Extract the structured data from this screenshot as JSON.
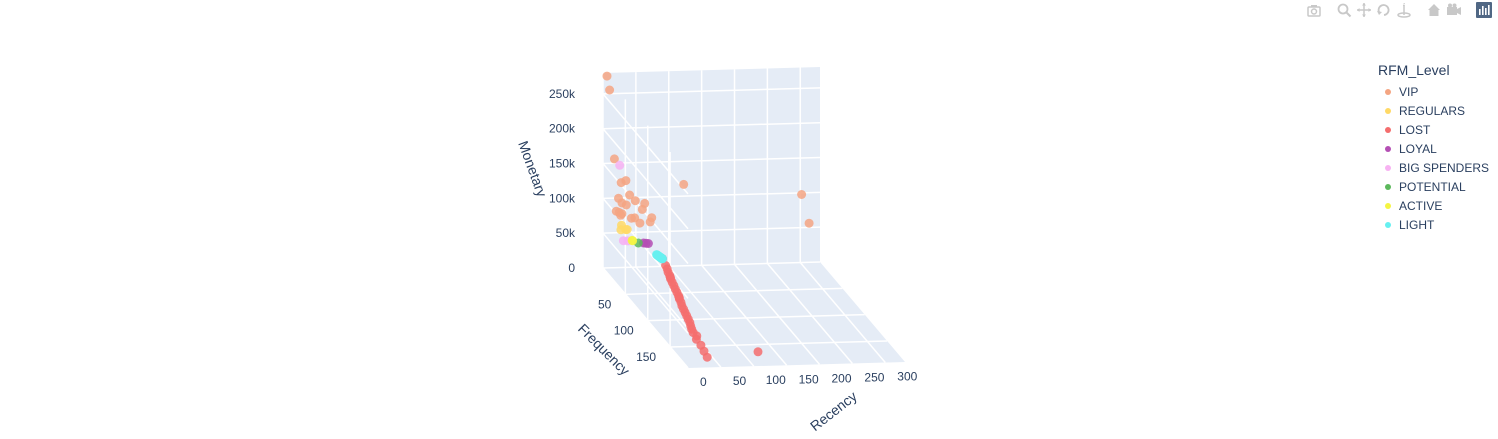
{
  "toolbar": {
    "buttons": [
      {
        "name": "camera-icon",
        "group": 0
      },
      {
        "name": "zoom-icon",
        "group": 1
      },
      {
        "name": "pan-icon",
        "group": 1
      },
      {
        "name": "orbit-icon",
        "group": 1
      },
      {
        "name": "turntable-icon",
        "group": 1
      },
      {
        "name": "home-icon",
        "group": 2
      },
      {
        "name": "camera-view-icon",
        "group": 2
      },
      {
        "name": "plotly-logo-icon",
        "group": 3
      }
    ]
  },
  "legend": {
    "title": "RFM_Level",
    "items": [
      {
        "label": "VIP",
        "color": "#f4a582"
      },
      {
        "label": "REGULARS",
        "color": "#ffd966"
      },
      {
        "label": "LOST",
        "color": "#f46d6d"
      },
      {
        "label": "LOYAL",
        "color": "#b44fb4"
      },
      {
        "label": "BIG SPENDERS",
        "color": "#f7b2f2"
      },
      {
        "label": "POTENTIAL",
        "color": "#5cb85c"
      },
      {
        "label": "ACTIVE",
        "color": "#f5f542"
      },
      {
        "label": "LIGHT",
        "color": "#66f0f0"
      }
    ]
  },
  "chart_data": {
    "type": "scatter",
    "dimensions": "3d",
    "axes": {
      "x": {
        "label": "Recency",
        "ticks": [
          "0",
          "50",
          "100",
          "150",
          "200",
          "250",
          "300"
        ],
        "range": [
          0,
          330
        ]
      },
      "y": {
        "label": "Frequency",
        "ticks": [
          "50",
          "100",
          "150"
        ],
        "range": [
          0,
          190
        ]
      },
      "z": {
        "label": "Monetary",
        "ticks": [
          "0",
          "50k",
          "100k",
          "150k",
          "200k",
          "250k"
        ],
        "range": [
          0,
          280000
        ]
      }
    },
    "grid": true,
    "legend_placement": "top-right",
    "series": [
      {
        "name": "VIP",
        "color": "#f4a582",
        "points": [
          [
            2,
            6,
            280000
          ],
          [
            6,
            6,
            260000
          ],
          [
            14,
            5,
            160000
          ],
          [
            25,
            4,
            125000
          ],
          [
            30,
            7,
            130000
          ],
          [
            10,
            20,
            115000
          ],
          [
            35,
            8,
            110000
          ],
          [
            45,
            6,
            100000
          ],
          [
            60,
            5,
            95000
          ],
          [
            120,
            4,
            120000
          ],
          [
            300,
            3,
            100000
          ],
          [
            310,
            5,
            60000
          ],
          [
            15,
            14,
            90000
          ],
          [
            22,
            10,
            85000
          ],
          [
            8,
            18,
            95000
          ],
          [
            40,
            12,
            80000
          ],
          [
            70,
            6,
            75000
          ],
          [
            50,
            9,
            70000
          ],
          [
            18,
            16,
            105000
          ],
          [
            28,
            11,
            98000
          ],
          [
            55,
            7,
            88000
          ],
          [
            12,
            22,
            92000
          ],
          [
            33,
            15,
            82000
          ],
          [
            65,
            10,
            72000
          ]
        ]
      },
      {
        "name": "REGULARS",
        "color": "#ffd966",
        "points": [
          [
            20,
            12,
            70000
          ],
          [
            25,
            14,
            65000
          ],
          [
            15,
            18,
            68000
          ],
          [
            30,
            10,
            62000
          ]
        ]
      },
      {
        "name": "LOST",
        "color": "#f46d6d",
        "points": [
          [
            40,
            150,
            10000
          ],
          [
            42,
            140,
            12000
          ],
          [
            45,
            130,
            14000
          ],
          [
            48,
            120,
            16000
          ],
          [
            50,
            110,
            18000
          ],
          [
            52,
            100,
            20000
          ],
          [
            55,
            90,
            22000
          ],
          [
            58,
            80,
            24000
          ],
          [
            60,
            70,
            26000
          ],
          [
            62,
            60,
            28000
          ],
          [
            65,
            50,
            30000
          ],
          [
            68,
            40,
            32000
          ],
          [
            70,
            30,
            34000
          ],
          [
            40,
            160,
            9000
          ],
          [
            38,
            170,
            8000
          ],
          [
            44,
            145,
            11000
          ],
          [
            47,
            125,
            15000
          ],
          [
            51,
            105,
            19000
          ],
          [
            54,
            95,
            21000
          ],
          [
            57,
            85,
            23000
          ],
          [
            59,
            75,
            25000
          ],
          [
            61,
            65,
            27000
          ],
          [
            64,
            55,
            29000
          ],
          [
            67,
            45,
            31000
          ],
          [
            120,
            170,
            5000
          ],
          [
            36,
            180,
            7000
          ],
          [
            43,
            135,
            13000
          ],
          [
            49,
            115,
            17000
          ],
          [
            56,
            88,
            22500
          ],
          [
            63,
            58,
            28500
          ]
        ]
      },
      {
        "name": "LOYAL",
        "color": "#b44fb4",
        "points": [
          [
            60,
            8,
            40000
          ],
          [
            55,
            10,
            42000
          ],
          [
            65,
            6,
            38000
          ]
        ]
      },
      {
        "name": "BIG SPENDERS",
        "color": "#f7b2f2",
        "points": [
          [
            5,
            30,
            170000
          ],
          [
            12,
            28,
            60000
          ],
          [
            20,
            26,
            58000
          ]
        ]
      },
      {
        "name": "POTENTIAL",
        "color": "#5cb85c",
        "points": [
          [
            40,
            20,
            50000
          ]
        ]
      },
      {
        "name": "ACTIVE",
        "color": "#f5f542",
        "points": [
          [
            30,
            22,
            55000
          ],
          [
            28,
            24,
            57000
          ]
        ]
      },
      {
        "name": "LIGHT",
        "color": "#66f0f0",
        "points": [
          [
            70,
            30,
            34000
          ],
          [
            68,
            32,
            36000
          ],
          [
            66,
            34,
            38000
          ],
          [
            64,
            36,
            40000
          ],
          [
            62,
            38,
            42000
          ],
          [
            60,
            40,
            44000
          ],
          [
            58,
            42,
            46000
          ],
          [
            56,
            44,
            48000
          ],
          [
            54,
            46,
            50000
          ],
          [
            52,
            48,
            52000
          ],
          [
            50,
            50,
            54000
          ],
          [
            48,
            52,
            56000
          ],
          [
            46,
            54,
            58000
          ],
          [
            44,
            56,
            60000
          ],
          [
            42,
            58,
            62000
          ],
          [
            69,
            31,
            35000
          ],
          [
            67,
            33,
            37000
          ],
          [
            65,
            35,
            39000
          ],
          [
            63,
            37,
            41000
          ],
          [
            61,
            39,
            43000
          ],
          [
            59,
            41,
            45000
          ],
          [
            57,
            43,
            47000
          ],
          [
            55,
            45,
            49000
          ],
          [
            53,
            47,
            51000
          ]
        ]
      }
    ]
  }
}
